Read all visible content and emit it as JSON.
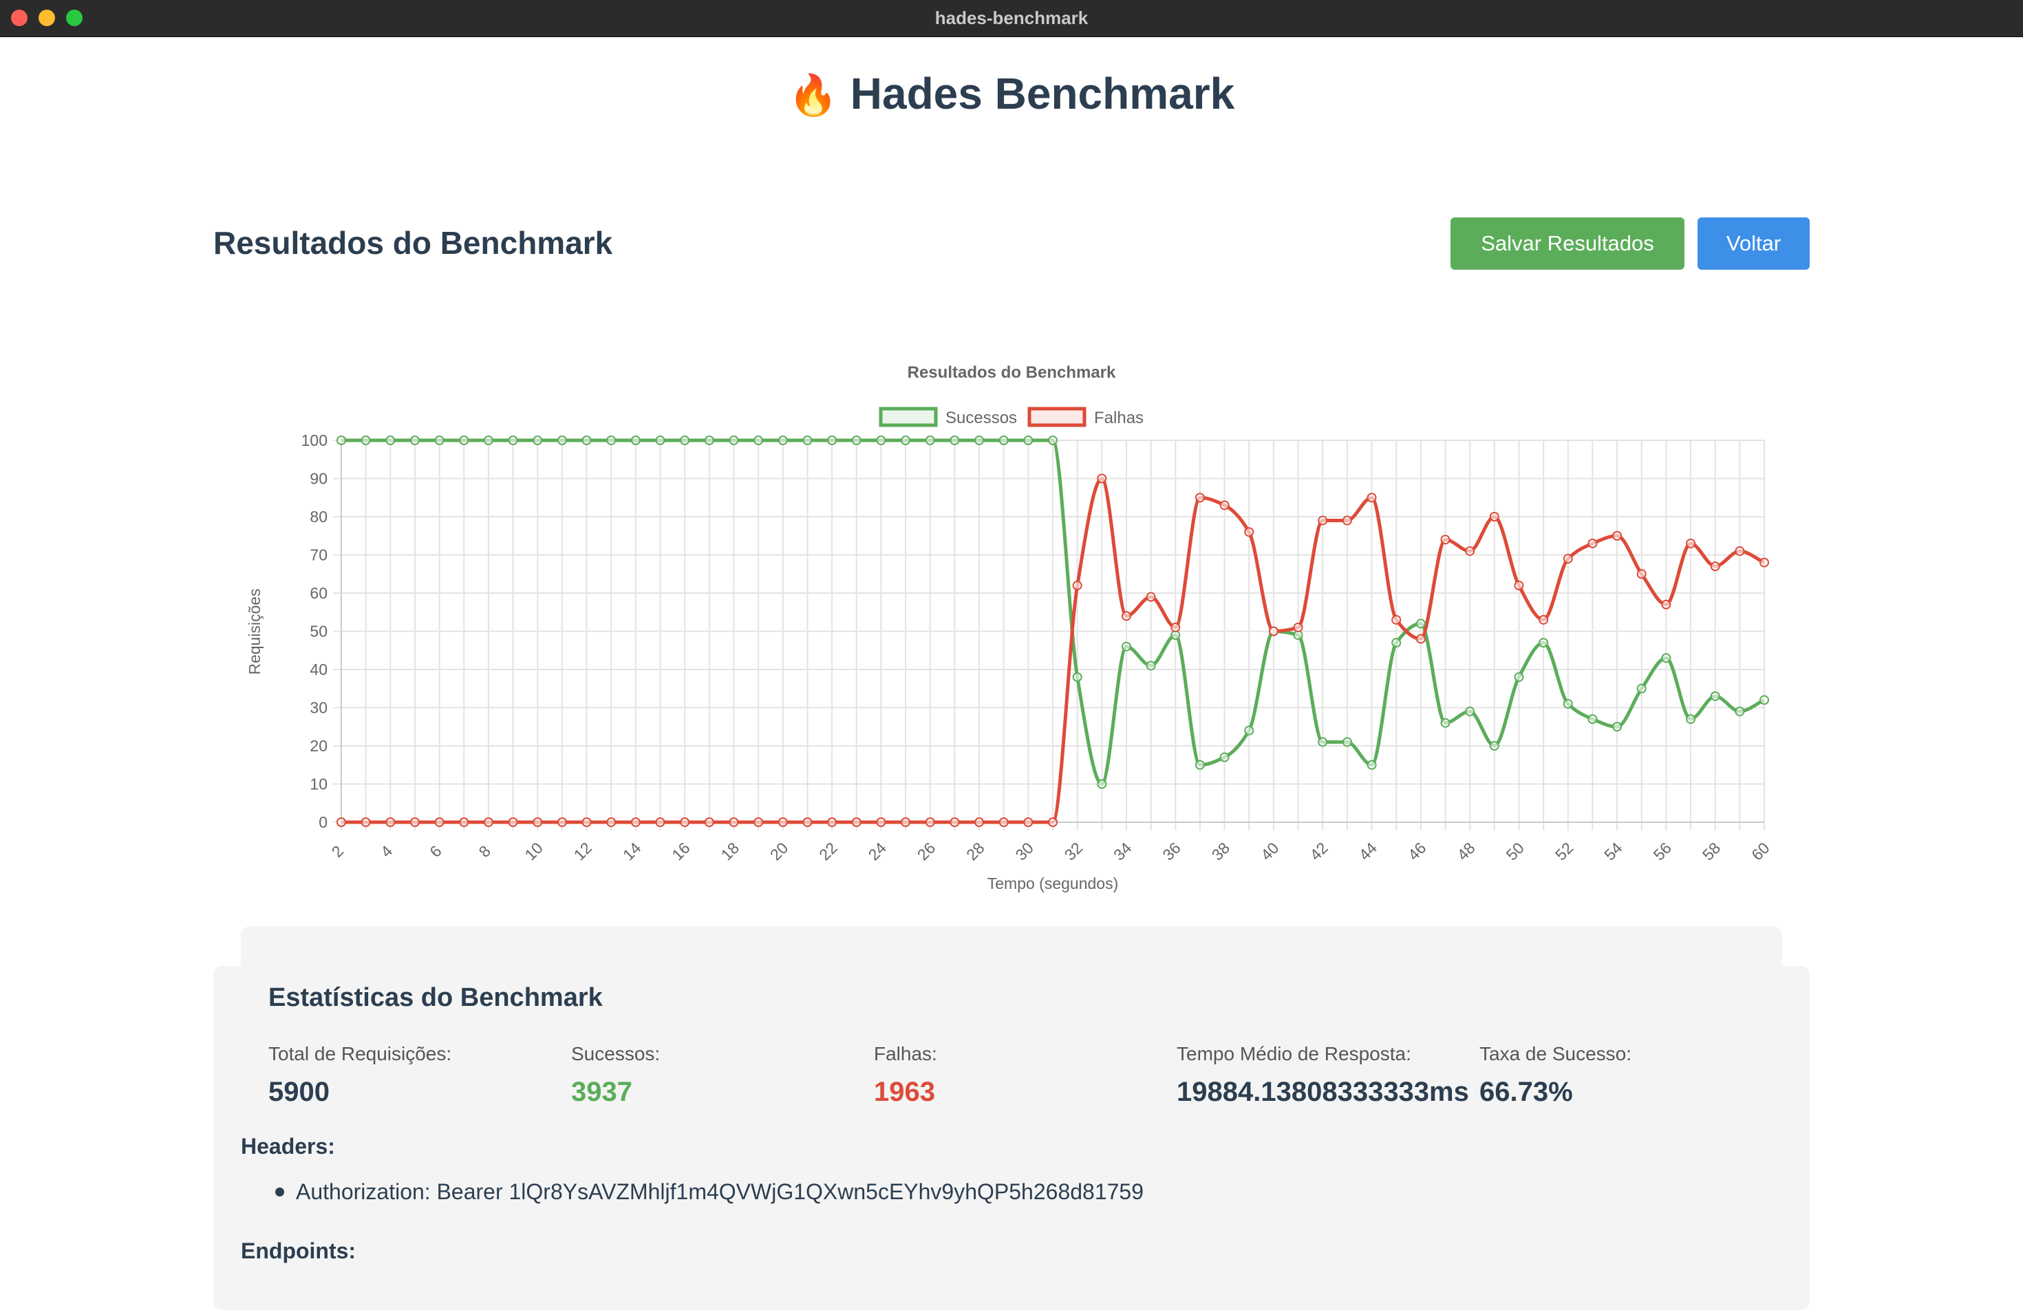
{
  "window": {
    "title": "hades-benchmark"
  },
  "app": {
    "icon": "fire-icon",
    "emoji": "🔥",
    "title": "Hades Benchmark"
  },
  "results": {
    "title": "Resultados do Benchmark",
    "save_label": "Salvar Resultados",
    "back_label": "Voltar"
  },
  "colors": {
    "success": "#5cad5a",
    "failure": "#dd4b39",
    "accent": "#3d8fe8"
  },
  "chart_data": {
    "type": "line",
    "title": "Resultados do Benchmark",
    "xlabel": "Tempo (segundos)",
    "ylabel": "Requisições",
    "x": [
      2,
      3,
      4,
      5,
      6,
      7,
      8,
      9,
      10,
      11,
      12,
      13,
      14,
      15,
      16,
      17,
      18,
      19,
      20,
      21,
      22,
      23,
      24,
      25,
      26,
      27,
      28,
      29,
      30,
      31,
      32,
      33,
      34,
      35,
      36,
      37,
      38,
      39,
      40,
      41,
      42,
      43,
      44,
      45,
      46,
      47,
      48,
      49,
      50,
      51,
      52,
      53,
      54,
      55,
      56,
      57,
      58,
      59,
      60
    ],
    "x_ticks": [
      2,
      4,
      6,
      8,
      10,
      12,
      14,
      16,
      18,
      20,
      22,
      24,
      26,
      28,
      30,
      32,
      34,
      36,
      38,
      40,
      42,
      44,
      46,
      48,
      50,
      52,
      54,
      56,
      58,
      60
    ],
    "ylim": [
      0,
      100
    ],
    "y_ticks": [
      0,
      10,
      20,
      30,
      40,
      50,
      60,
      70,
      80,
      90,
      100
    ],
    "legend": "top-center",
    "grid": true,
    "series": [
      {
        "name": "Sucessos",
        "color": "#5cad5a",
        "values": [
          100,
          100,
          100,
          100,
          100,
          100,
          100,
          100,
          100,
          100,
          100,
          100,
          100,
          100,
          100,
          100,
          100,
          100,
          100,
          100,
          100,
          100,
          100,
          100,
          100,
          100,
          100,
          100,
          100,
          100,
          38,
          10,
          46,
          41,
          49,
          15,
          17,
          24,
          50,
          49,
          21,
          21,
          15,
          47,
          52,
          26,
          29,
          20,
          38,
          47,
          31,
          27,
          25,
          35,
          43,
          27,
          33,
          29,
          32
        ]
      },
      {
        "name": "Falhas",
        "color": "#dd4b39",
        "values": [
          0,
          0,
          0,
          0,
          0,
          0,
          0,
          0,
          0,
          0,
          0,
          0,
          0,
          0,
          0,
          0,
          0,
          0,
          0,
          0,
          0,
          0,
          0,
          0,
          0,
          0,
          0,
          0,
          0,
          0,
          62,
          90,
          54,
          59,
          51,
          85,
          83,
          76,
          50,
          51,
          79,
          79,
          85,
          53,
          48,
          74,
          71,
          80,
          62,
          53,
          69,
          73,
          75,
          65,
          57,
          73,
          67,
          71,
          68
        ]
      }
    ]
  },
  "stats": {
    "title": "Estatísticas do Benchmark",
    "items": [
      {
        "label": "Total de Requisições:",
        "value": "5900"
      },
      {
        "label": "Sucessos:",
        "value": "3937"
      },
      {
        "label": "Falhas:",
        "value": "1963"
      },
      {
        "label": "Tempo Médio de Resposta:",
        "value": "19884.13808333333ms"
      },
      {
        "label": "Taxa de Sucesso:",
        "value": "66.73%"
      }
    ],
    "headers_title": "Headers:",
    "headers": [
      "Authorization: Bearer 1lQr8YsAVZMhljf1m4QVWjG1QXwn5cEYhv9yhQP5h268d81759"
    ],
    "endpoints_title": "Endpoints:"
  }
}
